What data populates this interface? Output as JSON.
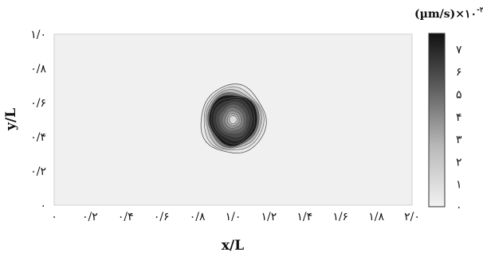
{
  "chart_data": {
    "type": "heatmap",
    "title": "",
    "xlabel": "x/L",
    "ylabel": "y/L",
    "xlim": [
      0,
      2
    ],
    "ylim": [
      0,
      1
    ],
    "x_ticks": [
      0,
      0.2,
      0.4,
      0.6,
      0.8,
      1.0,
      1.2,
      1.4,
      1.6,
      1.8,
      2.0
    ],
    "x_tick_labels": [
      "۰",
      "۰/۲",
      "۰/۴",
      "۰/۶",
      "۰/۸",
      "۱/۰",
      "۱/۲",
      "۱/۴",
      "۱/۶",
      "۱/۸",
      "۲/۰"
    ],
    "y_ticks": [
      0,
      0.2,
      0.4,
      0.6,
      0.8,
      1.0
    ],
    "y_tick_labels": [
      "۰",
      "۰/۲",
      "۰/۴",
      "۰/۶",
      "۰/۸",
      "۱/۰"
    ],
    "colorbar": {
      "label": "(µm/s)×۱۰",
      "label_exponent": "-۲",
      "range": [
        0,
        7.7
      ],
      "ticks": [
        0,
        1,
        2,
        3,
        4,
        5,
        6,
        7
      ],
      "tick_labels": [
        "۰",
        "۱",
        "۲",
        "۳",
        "۴",
        "۵",
        "۶",
        "۷"
      ],
      "colors": [
        "#f2f2f2",
        "#111111"
      ]
    },
    "feature": {
      "shape": "circular patch of non-zero values centred in the domain",
      "center": [
        1.0,
        0.5
      ],
      "outer_radius": 0.18,
      "peak_ring_radius": 0.13,
      "center_radius": 0.02,
      "background_value": 0,
      "ring_max_value": 7.5,
      "center_min_value": 0.5,
      "levels": [
        {
          "r": 0.19,
          "value": 0.3
        },
        {
          "r": 0.175,
          "value": 0.9
        },
        {
          "r": 0.162,
          "value": 2.0
        },
        {
          "r": 0.15,
          "value": 4.5
        },
        {
          "r": 0.14,
          "value": 7.5
        },
        {
          "r": 0.128,
          "value": 7.0
        },
        {
          "r": 0.112,
          "value": 6.4
        },
        {
          "r": 0.096,
          "value": 5.7
        },
        {
          "r": 0.08,
          "value": 4.9
        },
        {
          "r": 0.064,
          "value": 4.0
        },
        {
          "r": 0.048,
          "value": 3.0
        },
        {
          "r": 0.034,
          "value": 2.0
        },
        {
          "r": 0.022,
          "value": 0.8
        }
      ]
    }
  }
}
